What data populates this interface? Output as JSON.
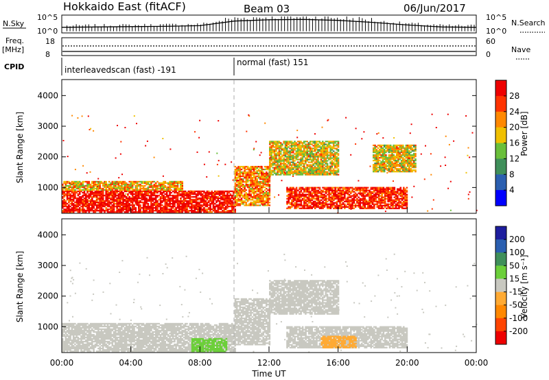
{
  "header": {
    "title": "Hokkaido East (fitACF)",
    "beam": "Beam 03",
    "date": "06/Jun/2017"
  },
  "noise_panel": {
    "left_label": "N.Sky",
    "right_label": "N.Search",
    "left_ticks": [
      "10^5",
      "10^0"
    ],
    "right_ticks": [
      "10^5",
      "10^0"
    ]
  },
  "freq_panel": {
    "label_line1": "Freq.",
    "label_line2": "[MHz]",
    "left_ticks": [
      "18",
      "8"
    ],
    "right_ticks": [
      "60",
      "0"
    ],
    "right_label": "Nave"
  },
  "cpid": {
    "label": "CPID",
    "modes": [
      "interleavedscan (fast) -191",
      "normal (fast) 151"
    ]
  },
  "power_panel": {
    "ylabel": "Slant Range [km]",
    "yticks": [
      "4000",
      "3000",
      "2000",
      "1000"
    ],
    "colorbar_label": "Power [dB]",
    "colorbar_ticks": [
      "28",
      "24",
      "20",
      "16",
      "12",
      "8",
      "4"
    ]
  },
  "velocity_panel": {
    "ylabel": "Slant Range [km]",
    "yticks": [
      "4000",
      "3000",
      "2000",
      "1000"
    ],
    "colorbar_label": "Velocity [m s⁻¹]",
    "colorbar_ticks": [
      "200",
      "100",
      "50",
      "15",
      "-15",
      "-50",
      "-100",
      "-200"
    ]
  },
  "xaxis": {
    "label": "Time UT",
    "ticks": [
      "00:00",
      "04:00",
      "08:00",
      "12:00",
      "16:00",
      "20:00",
      "00:00"
    ]
  },
  "colors": {
    "power_scale": [
      "#0000ff",
      "#2b5fb0",
      "#3f8f5a",
      "#6abf3a",
      "#f0c000",
      "#ff8800",
      "#ff3300",
      "#ee0000"
    ],
    "velocity_scale": [
      "#ee0000",
      "#ff4400",
      "#ff8800",
      "#ffaa33",
      "#c8c8c0",
      "#6ccf3a",
      "#3f8f5a",
      "#2b5fb0",
      "#1e1e9e"
    ]
  },
  "chart_data": [
    {
      "type": "line",
      "title": "N.Sky / N.Search",
      "x_range_hours": [
        0,
        24
      ],
      "x": [
        0,
        2,
        4,
        6,
        8,
        10,
        12,
        14,
        16,
        18,
        20,
        22,
        24
      ],
      "series": [
        {
          "name": "N.Sky",
          "values": [
            1.5,
            1.6,
            1.7,
            1.8,
            2.0,
            3.4,
            3.8,
            3.9,
            3.6,
            3.0,
            2.2,
            1.6,
            1.5
          ]
        }
      ]
    },
    {
      "type": "heatmap",
      "title": "Power",
      "xlabel": "Time UT",
      "ylabel": "Slant Range [km]",
      "x_range_hours": [
        0,
        24
      ],
      "ylim": [
        180,
        4500
      ],
      "colorbar": {
        "label": "Power [dB]",
        "range": [
          0,
          32
        ]
      },
      "regions": [
        {
          "t": [
            0,
            10
          ],
          "r": [
            180,
            900
          ],
          "value": 30
        },
        {
          "t": [
            0,
            7
          ],
          "r": [
            900,
            1200
          ],
          "value": 20
        },
        {
          "t": [
            10,
            12
          ],
          "r": [
            400,
            1700
          ],
          "value": 22
        },
        {
          "t": [
            13,
            20
          ],
          "r": [
            300,
            1000
          ],
          "value": 28
        },
        {
          "t": [
            12,
            16
          ],
          "r": [
            1400,
            2500
          ],
          "value": 18
        },
        {
          "t": [
            18,
            20.5
          ],
          "r": [
            1500,
            2400
          ],
          "value": 18
        }
      ]
    },
    {
      "type": "heatmap",
      "title": "Velocity",
      "xlabel": "Time UT",
      "ylabel": "Slant Range [km]",
      "x_range_hours": [
        0,
        24
      ],
      "ylim": [
        180,
        4500
      ],
      "colorbar": {
        "label": "Velocity [m s⁻¹]",
        "range": [
          -250,
          250
        ]
      },
      "regions": [
        {
          "t": [
            0,
            10
          ],
          "r": [
            180,
            1100
          ],
          "value": 0
        },
        {
          "t": [
            7.5,
            9.5
          ],
          "r": [
            180,
            600
          ],
          "value": 30
        },
        {
          "t": [
            10,
            12
          ],
          "r": [
            400,
            1900
          ],
          "value": 0
        },
        {
          "t": [
            13,
            20
          ],
          "r": [
            300,
            1000
          ],
          "value": 0
        },
        {
          "t": [
            15,
            17
          ],
          "r": [
            300,
            700
          ],
          "value": -40
        },
        {
          "t": [
            12,
            16
          ],
          "r": [
            1400,
            2500
          ],
          "value": 0
        }
      ]
    }
  ]
}
